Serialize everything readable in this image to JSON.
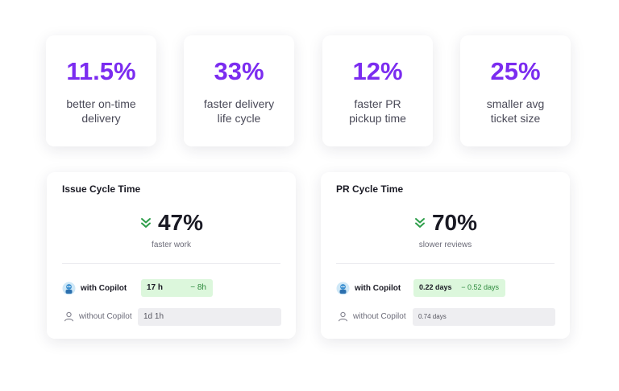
{
  "stats": [
    {
      "value": "11.5%",
      "line1": "better on-time",
      "line2": "delivery"
    },
    {
      "value": "33%",
      "line1": "faster delivery",
      "line2": "life cycle"
    },
    {
      "value": "12%",
      "line1": "faster PR",
      "line2": "pickup time"
    },
    {
      "value": "25%",
      "line1": "smaller avg",
      "line2": "ticket size"
    }
  ],
  "metrics": [
    {
      "title": "Issue Cycle Time",
      "value": "47%",
      "subtitle": "faster work",
      "with_label": "with Copilot",
      "with_value": "17 h",
      "with_delta": "− 8h",
      "without_label": "without Copilot",
      "without_value": "1d 1h"
    },
    {
      "title": "PR Cycle Time",
      "value": "70%",
      "subtitle": "slower reviews",
      "with_label": "with Copilot",
      "with_value": "0.22 days",
      "with_delta": "− 0.52 days",
      "without_label": "without Copilot",
      "without_value": "0.74 days"
    }
  ],
  "icons": {
    "chevron": "double-chevron-down-icon",
    "copilot": "copilot-avatar-icon",
    "person": "person-icon"
  },
  "colors": {
    "accent": "#7b2cf0",
    "positive": "#2e8a3e",
    "positive_bg": "#dcf7dc",
    "neutral_bg": "#eeeef1"
  }
}
